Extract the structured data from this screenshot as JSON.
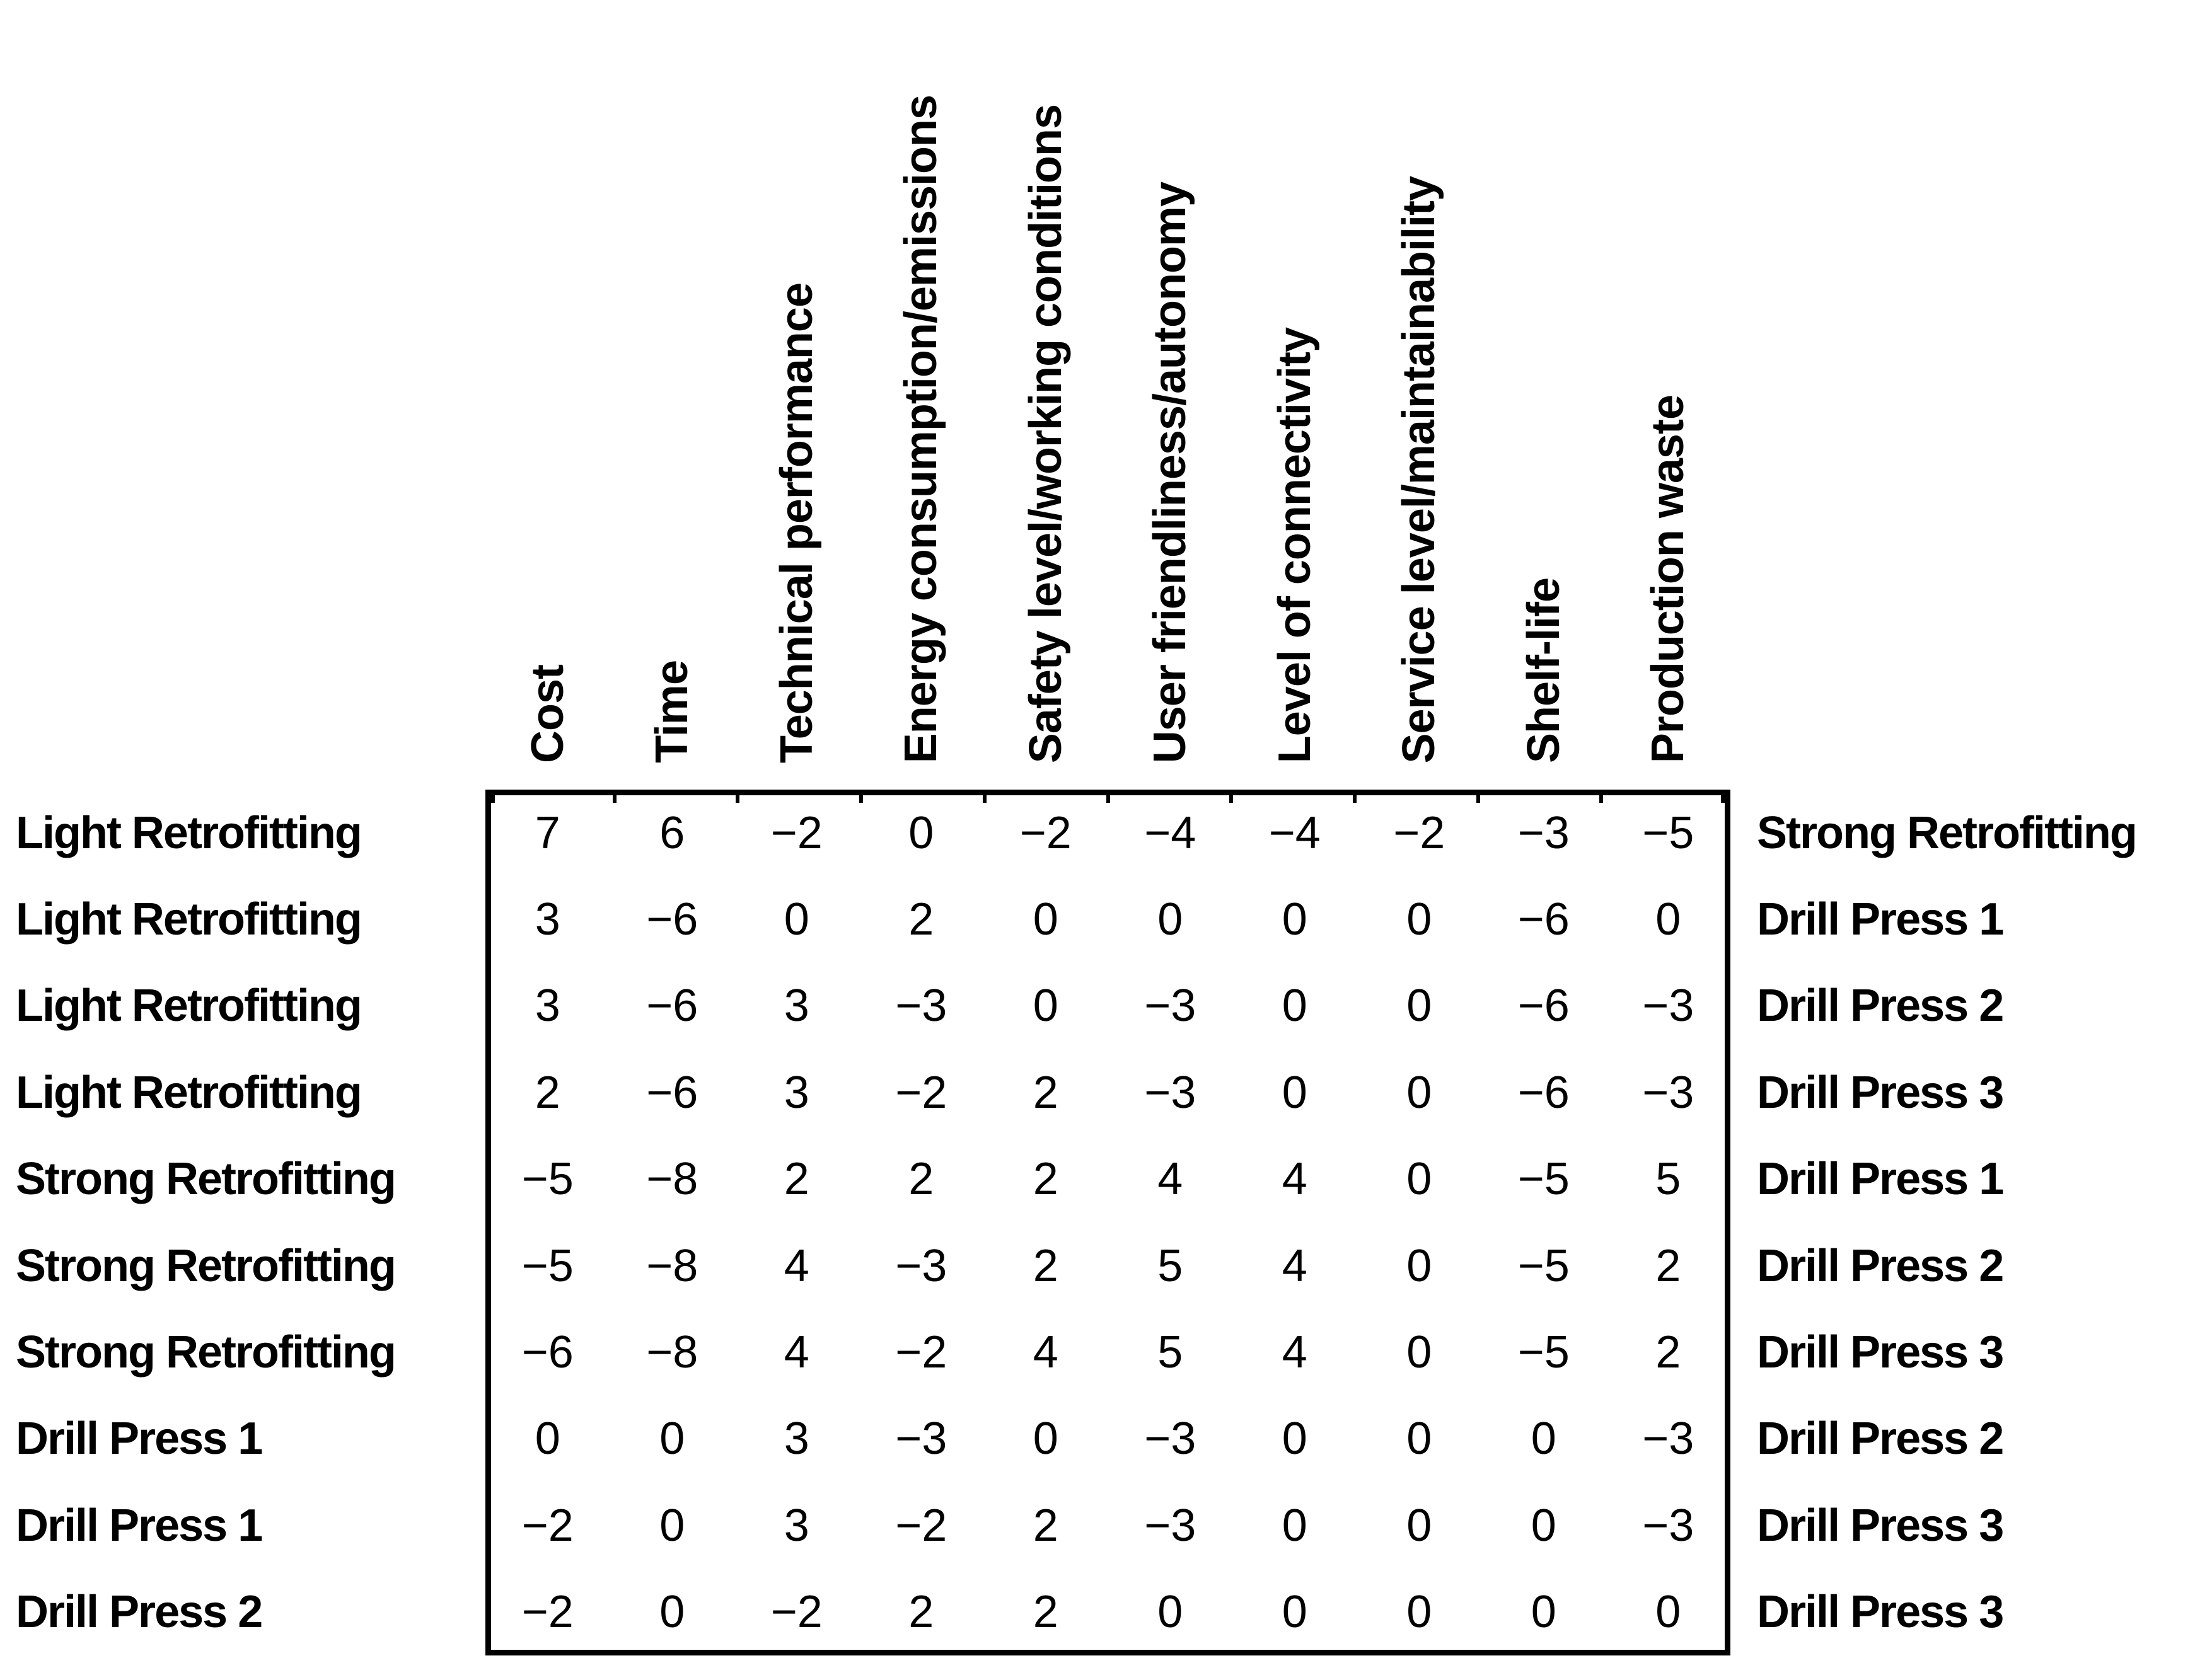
{
  "figure": {
    "style": {
      "background": "#ffffff",
      "text_color": "#000000",
      "border_color": "#000000",
      "minus_glyph": "−"
    }
  },
  "chart_data": {
    "type": "table",
    "columns": [
      "Cost",
      "Time",
      "Technical performance",
      "Energy consumption/emissions",
      "Safety level/working conditions",
      "User friendliness/autonomy",
      "Level of connectivity",
      "Service level/maintainability",
      "Shelf-life",
      "Production waste"
    ],
    "rows": [
      {
        "left": "Light Retrofitting",
        "values": [
          7,
          6,
          -2,
          0,
          -2,
          -4,
          -4,
          -2,
          -3,
          -5
        ],
        "right": "Strong Retrofitting"
      },
      {
        "left": "Light Retrofitting",
        "values": [
          3,
          -6,
          0,
          2,
          0,
          0,
          0,
          0,
          -6,
          0
        ],
        "right": "Drill Press 1"
      },
      {
        "left": "Light Retrofitting",
        "values": [
          3,
          -6,
          3,
          -3,
          0,
          -3,
          0,
          0,
          -6,
          -3
        ],
        "right": "Drill Press 2"
      },
      {
        "left": "Light Retrofitting",
        "values": [
          2,
          -6,
          3,
          -2,
          2,
          -3,
          0,
          0,
          -6,
          -3
        ],
        "right": "Drill Press 3"
      },
      {
        "left": "Strong Retrofitting",
        "values": [
          -5,
          -8,
          2,
          2,
          2,
          4,
          4,
          0,
          -5,
          5
        ],
        "right": "Drill Press 1"
      },
      {
        "left": "Strong Retrofitting",
        "values": [
          -5,
          -8,
          4,
          -3,
          2,
          5,
          4,
          0,
          -5,
          2
        ],
        "right": "Drill Press 2"
      },
      {
        "left": "Strong Retrofitting",
        "values": [
          -6,
          -8,
          4,
          -2,
          4,
          5,
          4,
          0,
          -5,
          2
        ],
        "right": "Drill Press 3"
      },
      {
        "left": "Drill Press 1",
        "values": [
          0,
          0,
          3,
          -3,
          0,
          -3,
          0,
          0,
          0,
          -3
        ],
        "right": "Drill Press 2"
      },
      {
        "left": "Drill Press 1",
        "values": [
          -2,
          0,
          3,
          -2,
          2,
          -3,
          0,
          0,
          0,
          -3
        ],
        "right": "Drill Press 3"
      },
      {
        "left": "Drill Press 2",
        "values": [
          -2,
          0,
          -2,
          2,
          2,
          0,
          0,
          0,
          0,
          0
        ],
        "right": "Drill Press 3"
      }
    ],
    "layout": {
      "grid": "off",
      "value_range": [
        -8,
        7
      ],
      "legend_position": "none",
      "header_orientation": "rotated-90"
    }
  }
}
